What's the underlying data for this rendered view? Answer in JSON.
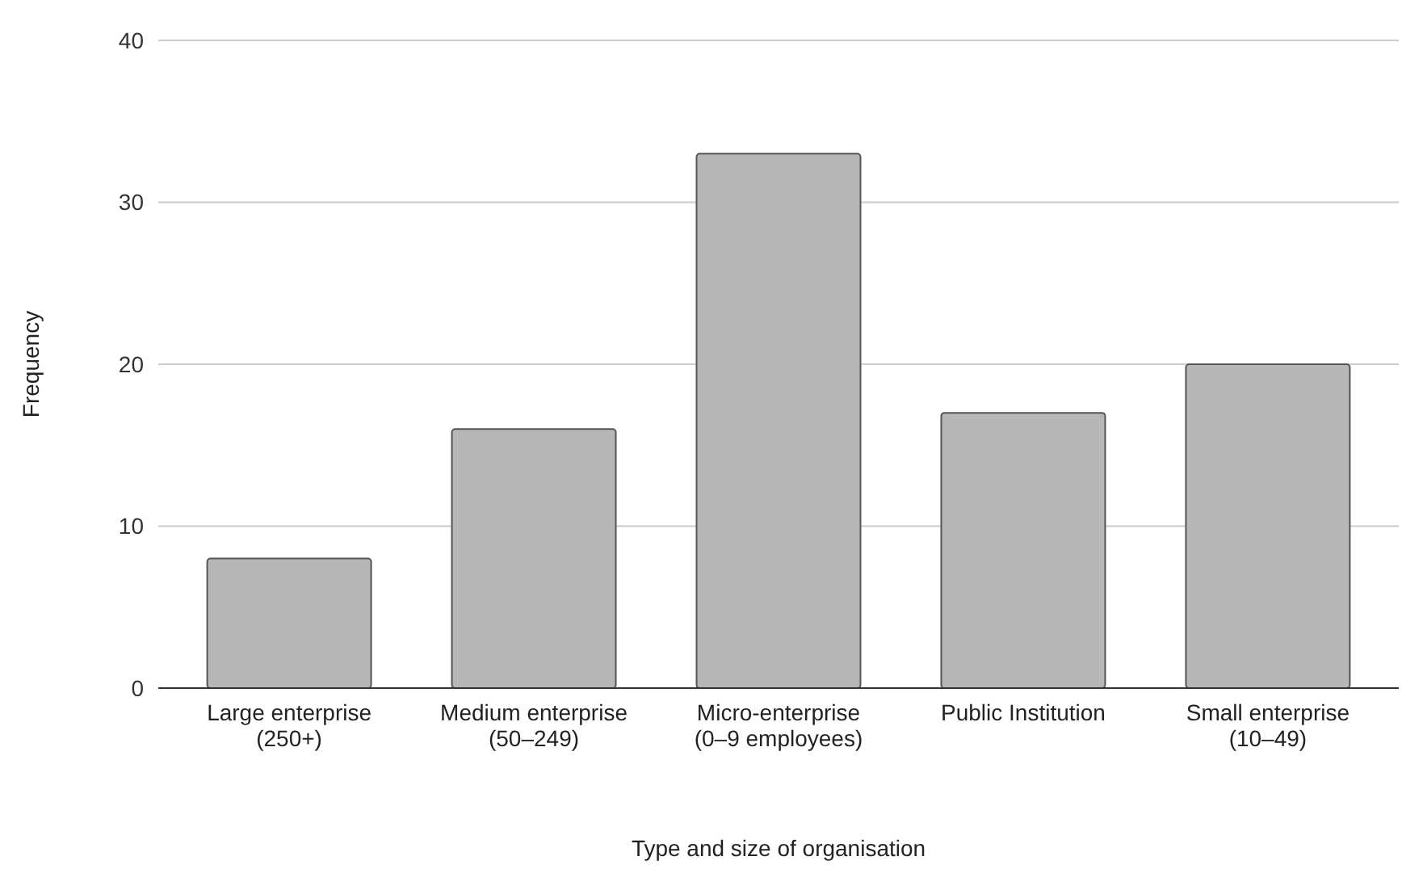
{
  "chart_data": {
    "type": "bar",
    "xlabel": "Type and size of organisation",
    "ylabel": "Frequency",
    "categories": [
      "Large enterprise (250+)",
      "Medium enterprise (50–249)",
      "Micro-enterprise (0–9 employees)",
      "Public Institution",
      "Small enterprise (10–49)"
    ],
    "values": [
      8,
      16,
      33,
      17,
      20
    ],
    "color": "#b7b7b7",
    "ylim": [
      0,
      40
    ],
    "yticks": [
      0,
      10,
      20,
      30,
      40
    ],
    "grid": "y"
  }
}
